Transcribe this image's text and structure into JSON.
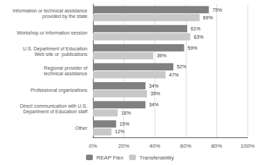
{
  "chart_data": {
    "type": "bar",
    "orientation": "horizontal",
    "categories": [
      "Other",
      "Direct communication with U.S.\nDepartment of Education staff",
      "Professional organizations",
      "Regional provider of\ntechnical assistance",
      "U.S. Department of Education\nWeb site or  publications",
      "Workshop or information session",
      "Information or technical assistance\nprovided by the state"
    ],
    "series": [
      {
        "name": "REAP Flex",
        "color": "#808080",
        "values": [
          15,
          34,
          34,
          52,
          59,
          61,
          75
        ],
        "value_labels": [
          "15%",
          "34%",
          "34%",
          "52%",
          "59%",
          "61%",
          "75%"
        ]
      },
      {
        "name": "Transferability",
        "color": "#c8c8c8",
        "values": [
          12,
          16,
          35,
          47,
          39,
          63,
          69
        ],
        "value_labels": [
          "12%",
          "16%",
          "35%",
          "47%",
          "39%",
          "63%",
          "69%"
        ]
      }
    ],
    "xlim": [
      0,
      100
    ],
    "xticks": [
      {
        "value": 0,
        "label": "0%"
      },
      {
        "value": 20,
        "label": "20%"
      },
      {
        "value": 40,
        "label": "40%"
      },
      {
        "value": 60,
        "label": "60%"
      },
      {
        "value": 80,
        "label": "80%"
      },
      {
        "value": 100,
        "label": "100%"
      }
    ],
    "grid": true,
    "data_labels": true,
    "legend": "bottom"
  }
}
